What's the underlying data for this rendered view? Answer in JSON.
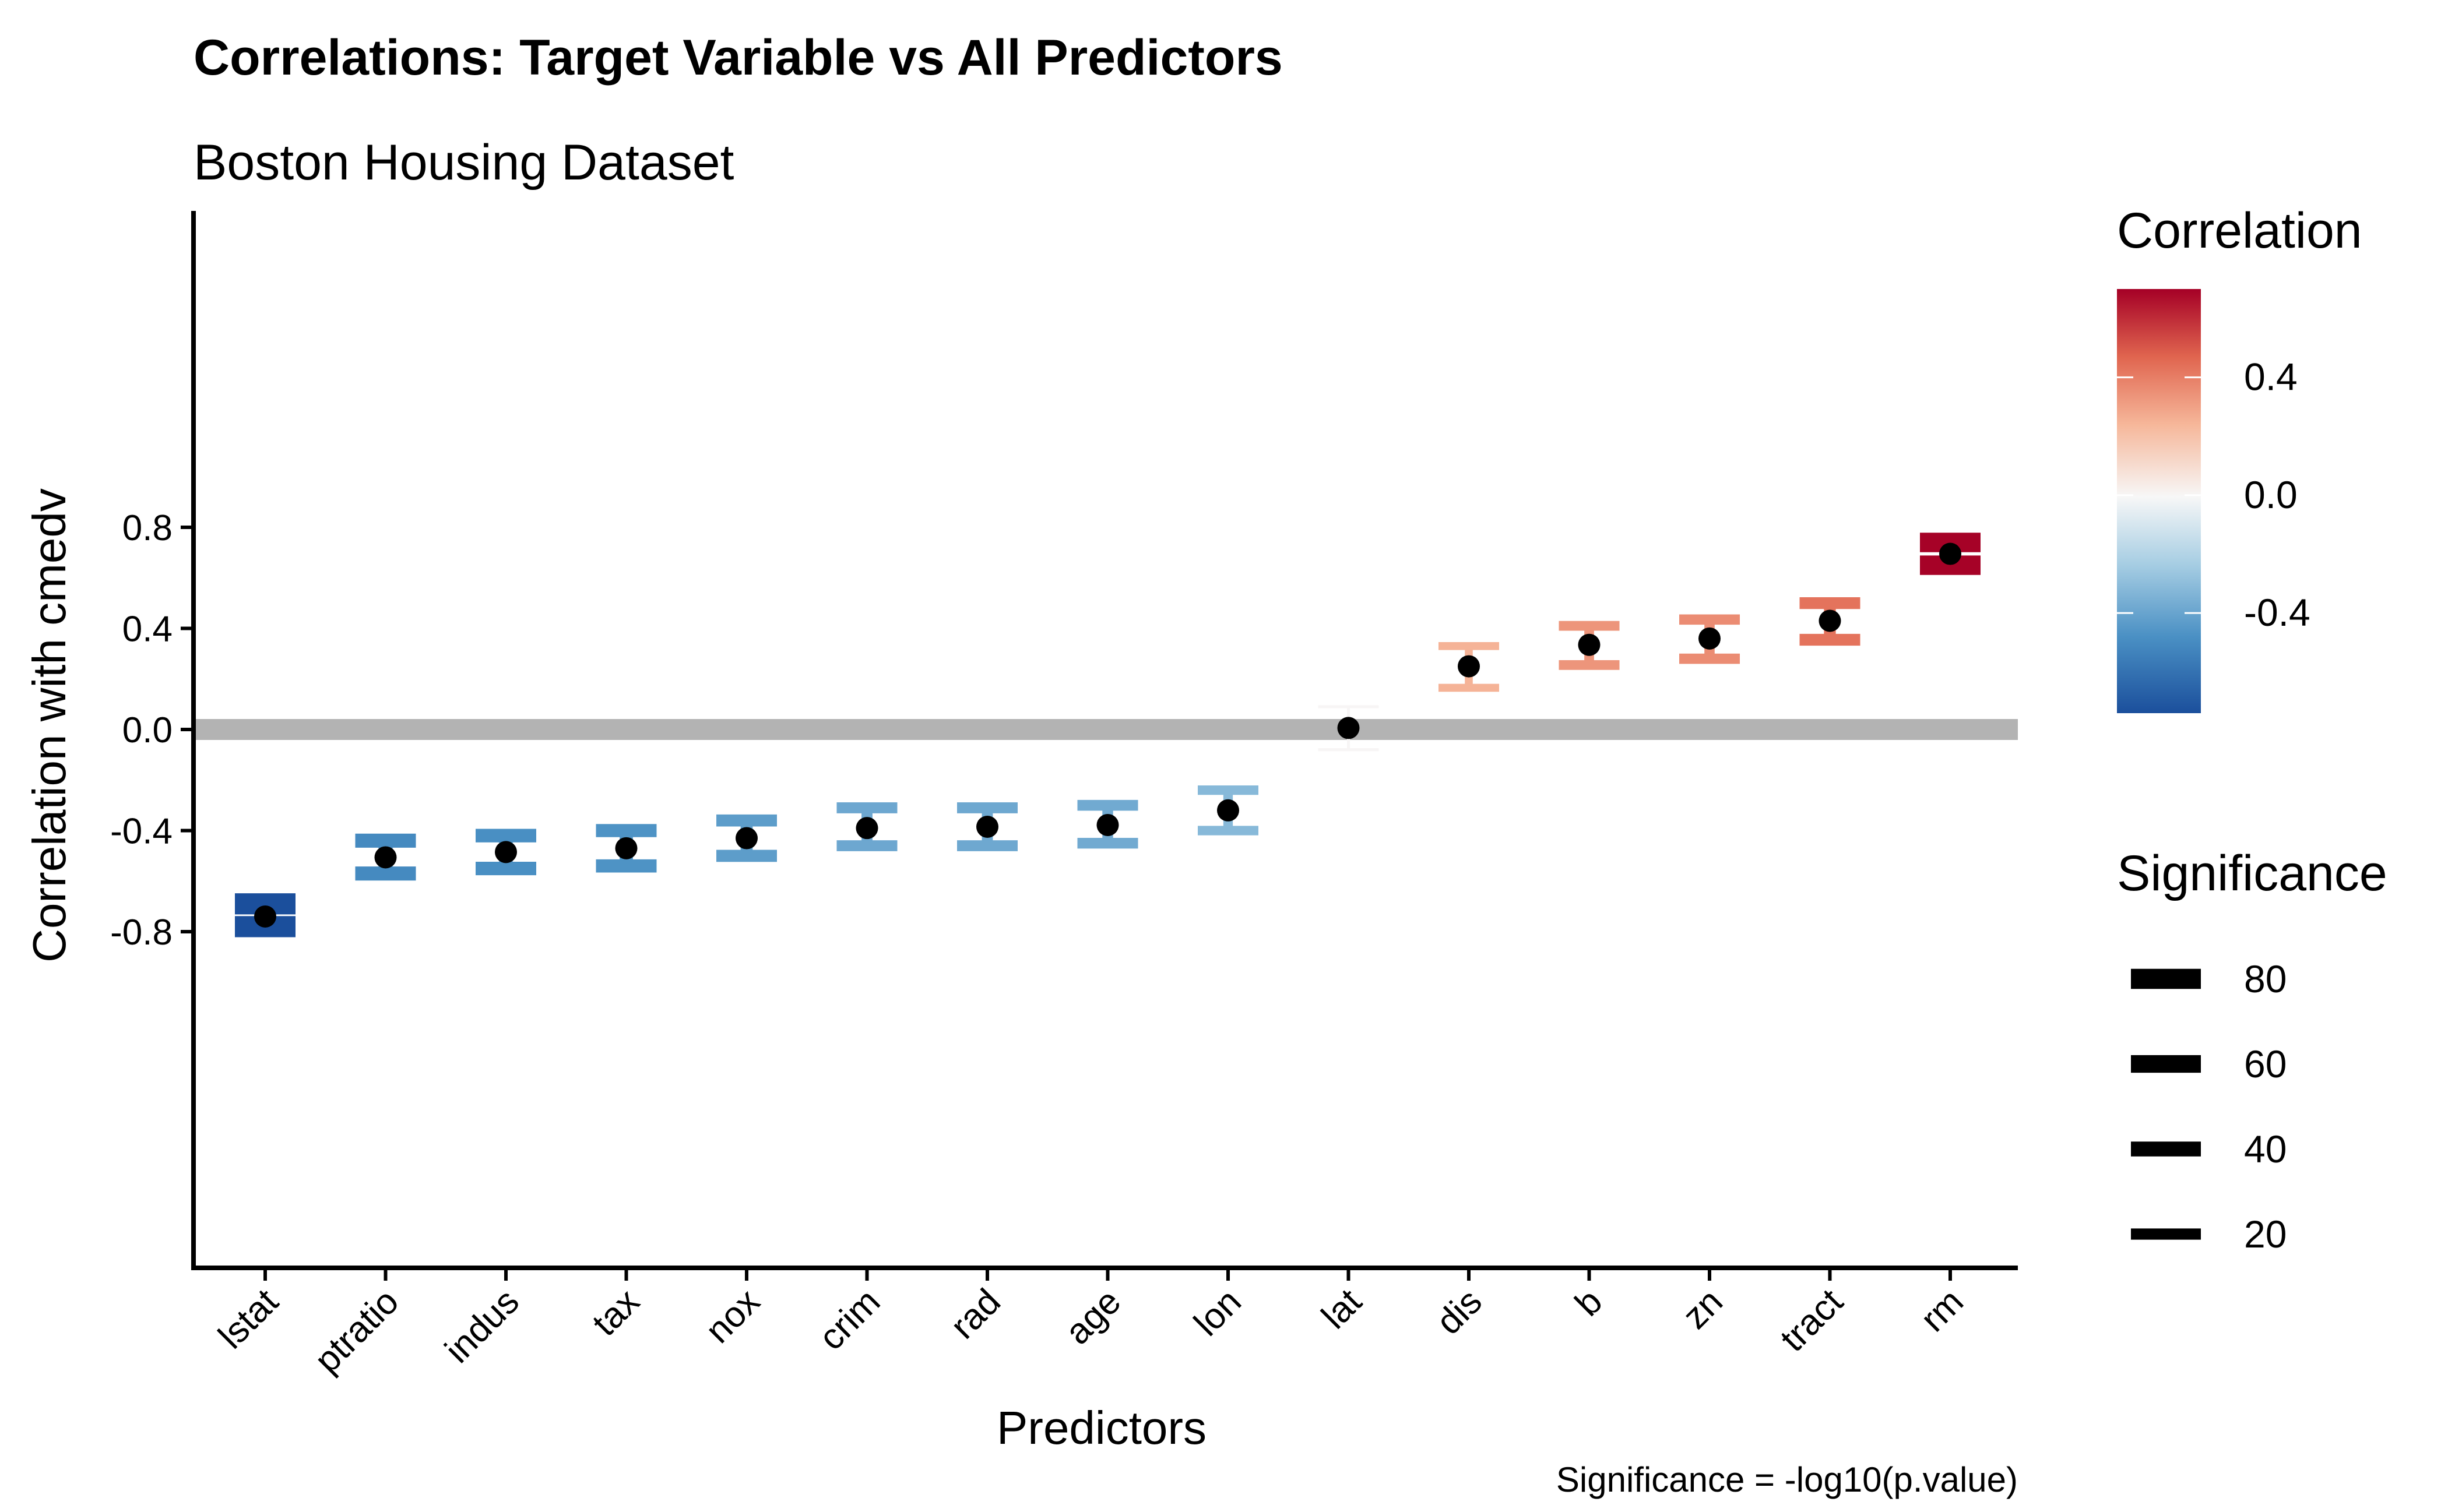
{
  "chart_data": {
    "type": "scatter",
    "title": "Correlations: Target Variable vs All Predictors",
    "subtitle": "Boston Housing Dataset",
    "xlabel": "Predictors",
    "ylabel": "Correlation with cmedv",
    "caption": "Significance = -log10(p.value)",
    "ylim": [
      -0.85,
      0.85
    ],
    "yticks": [
      {
        "value": -0.8,
        "label": "-0.8"
      },
      {
        "value": -0.4,
        "label": "-0.4"
      },
      {
        "value": 0.0,
        "label": "0.0"
      },
      {
        "value": 0.4,
        "label": "0.4"
      },
      {
        "value": 0.8,
        "label": "0.8"
      }
    ],
    "reference_line": 0.0,
    "grid": false,
    "points": [
      {
        "name": "lstat",
        "estimate": -0.74,
        "low": -0.78,
        "high": -0.69,
        "significance": 90
      },
      {
        "name": "ptratio",
        "estimate": -0.506,
        "low": -0.57,
        "high": -0.44,
        "significance": 35
      },
      {
        "name": "indus",
        "estimate": -0.485,
        "low": -0.55,
        "high": -0.42,
        "significance": 32
      },
      {
        "name": "tax",
        "estimate": -0.47,
        "low": -0.54,
        "high": -0.4,
        "significance": 30
      },
      {
        "name": "nox",
        "estimate": -0.43,
        "low": -0.5,
        "high": -0.36,
        "significance": 24
      },
      {
        "name": "crim",
        "estimate": -0.39,
        "low": -0.46,
        "high": -0.31,
        "significance": 19
      },
      {
        "name": "rad",
        "estimate": -0.385,
        "low": -0.46,
        "high": -0.31,
        "significance": 19
      },
      {
        "name": "age",
        "estimate": -0.378,
        "low": -0.45,
        "high": -0.3,
        "significance": 18
      },
      {
        "name": "lon",
        "estimate": -0.32,
        "low": -0.4,
        "high": -0.24,
        "significance": 13
      },
      {
        "name": "lat",
        "estimate": 0.006,
        "low": -0.08,
        "high": 0.09,
        "significance": 0.1
      },
      {
        "name": "dis",
        "estimate": 0.25,
        "low": 0.165,
        "high": 0.33,
        "significance": 8
      },
      {
        "name": "b",
        "estimate": 0.335,
        "low": 0.255,
        "high": 0.41,
        "significance": 14
      },
      {
        "name": "zn",
        "estimate": 0.36,
        "low": 0.28,
        "high": 0.435,
        "significance": 16
      },
      {
        "name": "tract",
        "estimate": 0.43,
        "low": 0.355,
        "high": 0.5,
        "significance": 23
      },
      {
        "name": "rm",
        "estimate": 0.695,
        "low": 0.65,
        "high": 0.74,
        "significance": 75
      }
    ],
    "legend": {
      "placement": "right",
      "color_title": "Correlation",
      "color_scale": {
        "type": "gradient",
        "low": -0.74,
        "high": 0.7,
        "colors": [
          "#2166ac",
          "#f7f7f7",
          "#b2182b"
        ],
        "labels": [
          {
            "value": 0.4,
            "label": "0.4"
          },
          {
            "value": 0.0,
            "label": "0.0"
          },
          {
            "value": -0.4,
            "label": "-0.4"
          }
        ]
      },
      "size_title": "Significance",
      "size_entries": [
        {
          "value": 80,
          "label": "80"
        },
        {
          "value": 60,
          "label": "60"
        },
        {
          "value": 40,
          "label": "40"
        },
        {
          "value": 20,
          "label": "20"
        }
      ]
    }
  }
}
